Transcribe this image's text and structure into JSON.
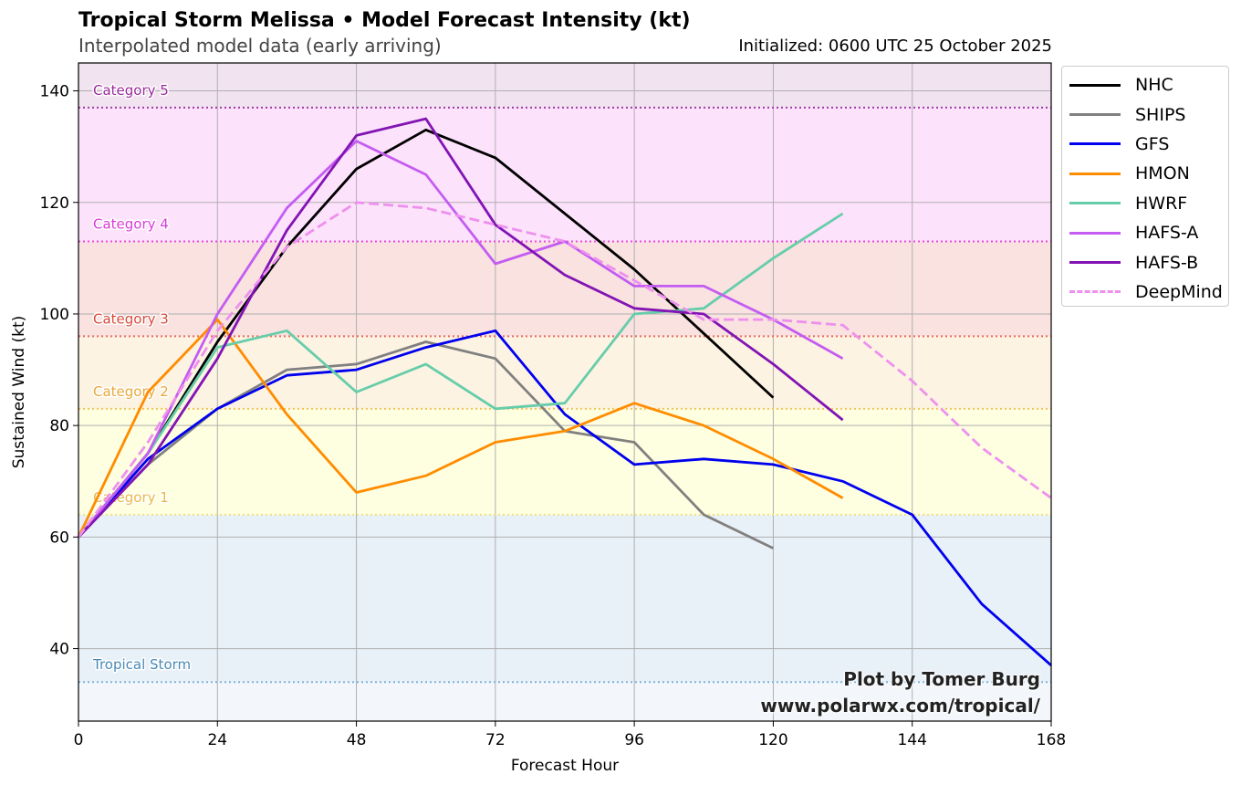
{
  "header": {
    "title": "Tropical Storm Melissa • Model Forecast Intensity (kt)",
    "subtitle": "Interpolated model data (early arriving)",
    "init": "Initialized: 0600 UTC 25 October 2025"
  },
  "credit": {
    "line1": "Plot by Tomer Burg",
    "line2": "www.polarwx.com/tropical/"
  },
  "chart_data": {
    "type": "line",
    "title": "Tropical Storm Melissa • Model Forecast Intensity (kt)",
    "xlabel": "Forecast Hour",
    "ylabel": "Sustained Wind (kt)",
    "xlim": [
      0,
      168
    ],
    "ylim": [
      27,
      145
    ],
    "xticks": [
      0,
      24,
      48,
      72,
      96,
      120,
      144,
      168
    ],
    "yticks": [
      40,
      60,
      80,
      100,
      120,
      140
    ],
    "grid": true,
    "legend_position": "outside-right-top",
    "categories": [
      {
        "label": "Tropical Storm",
        "threshold": 34,
        "upper": 64,
        "line_color": "#7fb2d8",
        "band_color": "#e8f0f8",
        "label_color": "#4a8ab5"
      },
      {
        "label": "Category 1",
        "threshold": 64,
        "upper": 83,
        "line_color": "#f3e27a",
        "band_color": "#fefee0",
        "label_color": "#e8b84a"
      },
      {
        "label": "Category 2",
        "threshold": 83,
        "upper": 96,
        "line_color": "#f2c45a",
        "band_color": "#fdf3e2",
        "label_color": "#e8a83a"
      },
      {
        "label": "Category 3",
        "threshold": 96,
        "upper": 113,
        "line_color": "#ec6a5a",
        "band_color": "#f9e2e0",
        "label_color": "#d84a3a"
      },
      {
        "label": "Category 4",
        "threshold": 113,
        "upper": 137,
        "line_color": "#e64ae0",
        "band_color": "#fde2fb",
        "label_color": "#d83ad8"
      },
      {
        "label": "Category 5",
        "threshold": 137,
        "upper": 145,
        "line_color": "#a03aa8",
        "band_color": "#f1e3ef",
        "label_color": "#9a2a9a"
      }
    ],
    "below_band_color": "#f3f7fb",
    "series": [
      {
        "name": "NHC",
        "color": "#000000",
        "dash": "solid",
        "x": [
          0,
          12,
          24,
          36,
          48,
          60,
          72,
          96,
          120
        ],
        "values": [
          60,
          75,
          95,
          112,
          126,
          133,
          128,
          108,
          85
        ]
      },
      {
        "name": "SHIPS",
        "color": "#808080",
        "dash": "solid",
        "x": [
          0,
          12,
          24,
          36,
          48,
          60,
          72,
          84,
          96,
          108,
          120
        ],
        "values": [
          60,
          73,
          83,
          90,
          91,
          95,
          92,
          79,
          77,
          64,
          58
        ]
      },
      {
        "name": "GFS",
        "color": "#0000ee",
        "dash": "solid",
        "x": [
          0,
          12,
          24,
          36,
          48,
          60,
          72,
          84,
          96,
          108,
          120,
          132,
          144,
          156,
          168
        ],
        "values": [
          60,
          74,
          83,
          89,
          90,
          94,
          97,
          82,
          73,
          74,
          73,
          70,
          64,
          48,
          37
        ]
      },
      {
        "name": "HMON",
        "color": "#ff8c00",
        "dash": "solid",
        "x": [
          0,
          12,
          24,
          36,
          48,
          60,
          72,
          84,
          96,
          108,
          120,
          132
        ],
        "values": [
          60,
          86,
          99,
          82,
          68,
          71,
          77,
          79,
          84,
          80,
          74,
          67
        ]
      },
      {
        "name": "HWRF",
        "color": "#66cdaa",
        "dash": "solid",
        "x": [
          0,
          12,
          24,
          36,
          48,
          60,
          72,
          84,
          96,
          108,
          120,
          132
        ],
        "values": [
          60,
          75,
          94,
          97,
          86,
          91,
          83,
          84,
          100,
          101,
          110,
          118
        ]
      },
      {
        "name": "HAFS-A",
        "color": "#c45cf2",
        "dash": "solid",
        "x": [
          0,
          12,
          24,
          36,
          48,
          60,
          72,
          84,
          96,
          108,
          120,
          132
        ],
        "values": [
          60,
          75,
          100,
          119,
          131,
          125,
          109,
          113,
          105,
          105,
          99,
          92
        ]
      },
      {
        "name": "HAFS-B",
        "color": "#8214b4",
        "dash": "solid",
        "x": [
          0,
          12,
          24,
          36,
          48,
          60,
          72,
          84,
          96,
          108,
          120,
          132
        ],
        "values": [
          60,
          73,
          92,
          115,
          132,
          135,
          116,
          107,
          101,
          100,
          91,
          81
        ]
      },
      {
        "name": "DeepMind",
        "color": "#ee90ee",
        "dash": "dashed",
        "x": [
          0,
          12,
          24,
          36,
          48,
          60,
          72,
          84,
          96,
          108,
          120,
          132,
          144,
          156,
          168
        ],
        "values": [
          60,
          77,
          97,
          112,
          120,
          119,
          116,
          113,
          106,
          99,
          99,
          98,
          88,
          76,
          67
        ]
      }
    ]
  }
}
